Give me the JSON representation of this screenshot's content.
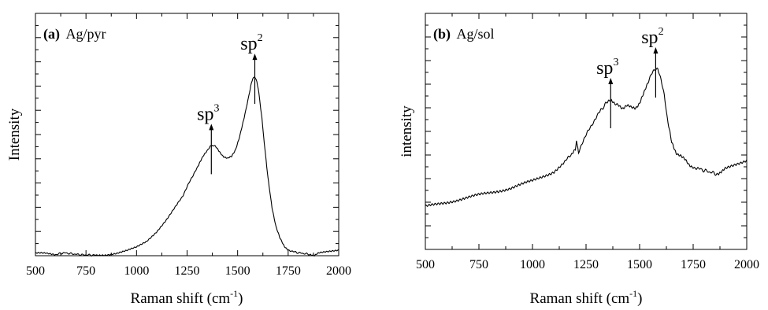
{
  "chart_data": [
    {
      "type": "line",
      "panel_letter": "(a)",
      "title": "Ag/pyr",
      "xlabel": "Raman shift (cm",
      "xlabel_exp": "-1",
      "xlabel_end": ")",
      "ylabel": "Intensity",
      "xlim": [
        500,
        2000
      ],
      "ylim": [
        0,
        1
      ],
      "x_ticks": [
        500,
        750,
        1000,
        1250,
        1500,
        1750,
        2000
      ],
      "x_tick_labels": [
        "500",
        "750",
        "1000",
        "1250",
        "1500",
        "1750",
        "2000"
      ],
      "y_tick_labels_shown": false,
      "annotations": [
        {
          "base": "sp",
          "exp": "3",
          "x": 1370
        },
        {
          "base": "sp",
          "exp": "2",
          "x": 1585
        }
      ],
      "series": [
        {
          "x": [
            500,
            550,
            600,
            640,
            680,
            720,
            760,
            800,
            850,
            900,
            950,
            1000,
            1050,
            1100,
            1150,
            1200,
            1230,
            1260,
            1290,
            1310,
            1330,
            1350,
            1365,
            1375,
            1390,
            1410,
            1430,
            1450,
            1470,
            1490,
            1510,
            1530,
            1550,
            1565,
            1575,
            1585,
            1595,
            1605,
            1620,
            1635,
            1650,
            1670,
            1690,
            1710,
            1730,
            1750,
            1780,
            1820,
            1860,
            1880,
            1900,
            1950,
            2000
          ],
          "y": [
            0.01,
            0.01,
            0.005,
            0.012,
            0.008,
            0.004,
            0.003,
            0.002,
            0.004,
            0.01,
            0.02,
            0.035,
            0.06,
            0.1,
            0.15,
            0.21,
            0.25,
            0.3,
            0.35,
            0.38,
            0.41,
            0.435,
            0.45,
            0.455,
            0.45,
            0.43,
            0.41,
            0.4,
            0.41,
            0.44,
            0.49,
            0.56,
            0.64,
            0.7,
            0.73,
            0.74,
            0.72,
            0.67,
            0.57,
            0.44,
            0.32,
            0.2,
            0.12,
            0.07,
            0.04,
            0.025,
            0.015,
            0.01,
            0.005,
            0.002,
            0.01,
            0.018,
            0.025
          ]
        }
      ]
    },
    {
      "type": "line",
      "panel_letter": "(b)",
      "title": "Ag/sol",
      "xlabel": "Raman shift (cm",
      "xlabel_exp": "-1",
      "xlabel_end": ")",
      "ylabel": "intensity",
      "xlim": [
        500,
        2000
      ],
      "ylim": [
        0,
        1
      ],
      "x_ticks": [
        500,
        750,
        1000,
        1250,
        1500,
        1750,
        2000
      ],
      "x_tick_labels": [
        "500",
        "750",
        "1000",
        "1250",
        "1500",
        "1750",
        "2000"
      ],
      "y_tick_labels_shown": false,
      "annotations": [
        {
          "base": "sp",
          "exp": "3",
          "x": 1365
        },
        {
          "base": "sp",
          "exp": "2",
          "x": 1575
        }
      ],
      "series": [
        {
          "x": [
            500,
            550,
            600,
            650,
            700,
            750,
            800,
            850,
            900,
            950,
            1000,
            1050,
            1100,
            1150,
            1180,
            1200,
            1205,
            1215,
            1230,
            1260,
            1290,
            1320,
            1345,
            1365,
            1385,
            1400,
            1420,
            1440,
            1460,
            1480,
            1500,
            1520,
            1540,
            1555,
            1570,
            1585,
            1600,
            1615,
            1630,
            1650,
            1670,
            1690,
            1710,
            1730,
            1750,
            1780,
            1820,
            1860,
            1880,
            1900,
            1950,
            2000
          ],
          "y": [
            0.18,
            0.19,
            0.2,
            0.21,
            0.22,
            0.23,
            0.24,
            0.25,
            0.26,
            0.275,
            0.29,
            0.31,
            0.33,
            0.37,
            0.4,
            0.42,
            0.46,
            0.41,
            0.45,
            0.5,
            0.55,
            0.59,
            0.62,
            0.63,
            0.62,
            0.61,
            0.6,
            0.61,
            0.6,
            0.6,
            0.62,
            0.66,
            0.71,
            0.74,
            0.76,
            0.77,
            0.72,
            0.65,
            0.55,
            0.45,
            0.41,
            0.4,
            0.38,
            0.36,
            0.35,
            0.34,
            0.33,
            0.32,
            0.33,
            0.34,
            0.36,
            0.38
          ]
        }
      ]
    }
  ]
}
